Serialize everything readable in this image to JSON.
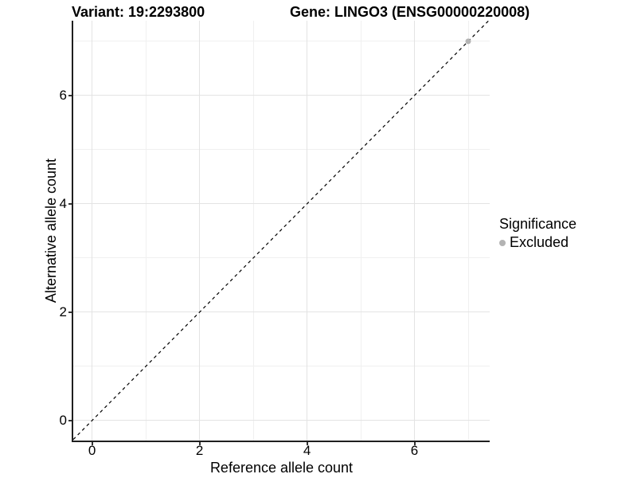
{
  "header": {
    "variant_title": "Variant: 19:2293800",
    "gene_title": "Gene: LINGO3 (ENSG00000220008)"
  },
  "chart_data": {
    "type": "scatter",
    "title_left": "Variant: 19:2293800",
    "title_right": "Gene: LINGO3 (ENSG00000220008)",
    "xlabel": "Reference allele count",
    "ylabel": "Alternative allele count",
    "xlim": [
      -0.35,
      7.4
    ],
    "ylim": [
      -0.37,
      7.38
    ],
    "x_major_breaks": [
      0,
      2,
      4,
      6
    ],
    "x_minor_breaks": [
      1,
      3,
      5,
      7
    ],
    "y_major_breaks": [
      0,
      2,
      4,
      6
    ],
    "y_minor_breaks": [
      1,
      3,
      5,
      7
    ],
    "grid": true,
    "identity_line": {
      "type": "abline",
      "slope": 1,
      "intercept": 0,
      "style": "dashed",
      "color": "#000000"
    },
    "series": [
      {
        "name": "Excluded",
        "color": "#b3b3b3",
        "points": [
          {
            "x": 7,
            "y": 7
          }
        ]
      }
    ],
    "legend": {
      "position": "right",
      "title": "Significance",
      "entries": [
        {
          "label": "Excluded",
          "color": "#b3b3b3"
        }
      ]
    }
  },
  "colors": {
    "background": "#ffffff",
    "grid_major": "#e3e3e3",
    "grid_minor": "#f0f0f0",
    "axis_line": "#1f1f1f",
    "tick": "#333333",
    "text": "#000000"
  }
}
